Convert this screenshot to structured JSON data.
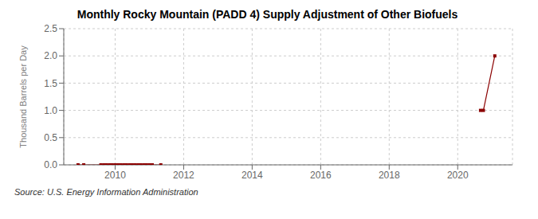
{
  "chart_data": {
    "type": "line",
    "title": "Monthly Rocky Mountain (PADD 4) Supply Adjustment of Other Biofuels",
    "y_label": "Thousand Barrels per Day",
    "annotation": "Source: U.S. Energy Information Administration",
    "xlim": [
      2008.5,
      2021.6
    ],
    "xticks": [
      2010,
      2012,
      2014,
      2016,
      2018,
      2020
    ],
    "ylim": [
      0.0,
      2.5
    ],
    "yticks": [
      {
        "value": 0.0,
        "label": "0.0"
      },
      0.5,
      {
        "value": 1.0,
        "label": "1.0"
      },
      1.5,
      {
        "value": 2.0,
        "label": "2.0"
      },
      2.5
    ],
    "grid": true,
    "marker": "square",
    "line_style": "solid",
    "series": [
      {
        "color": "#8b0000",
        "x": [
          2008.917,
          2009.083,
          2009.583,
          2009.667,
          2009.75,
          2009.833,
          2009.917,
          2010.0,
          2010.083,
          2010.167,
          2010.25,
          2010.333,
          2010.417,
          2010.5,
          2010.583,
          2010.667,
          2010.75,
          2010.833,
          2010.917,
          2011.0,
          2011.083,
          2011.333
        ],
        "values": [
          0.0,
          0.0,
          0.0,
          0.0,
          0.0,
          0.0,
          0.0,
          0.0,
          0.0,
          0.0,
          0.0,
          0.0,
          0.0,
          0.0,
          0.0,
          0.0,
          0.0,
          0.0,
          0.0,
          0.0,
          0.0,
          0.0
        ]
      },
      {
        "color": "#8b0000",
        "x": [
          2020.667,
          2020.75,
          2021.083
        ],
        "values": [
          1.0,
          1.0,
          2.0
        ]
      }
    ]
  }
}
